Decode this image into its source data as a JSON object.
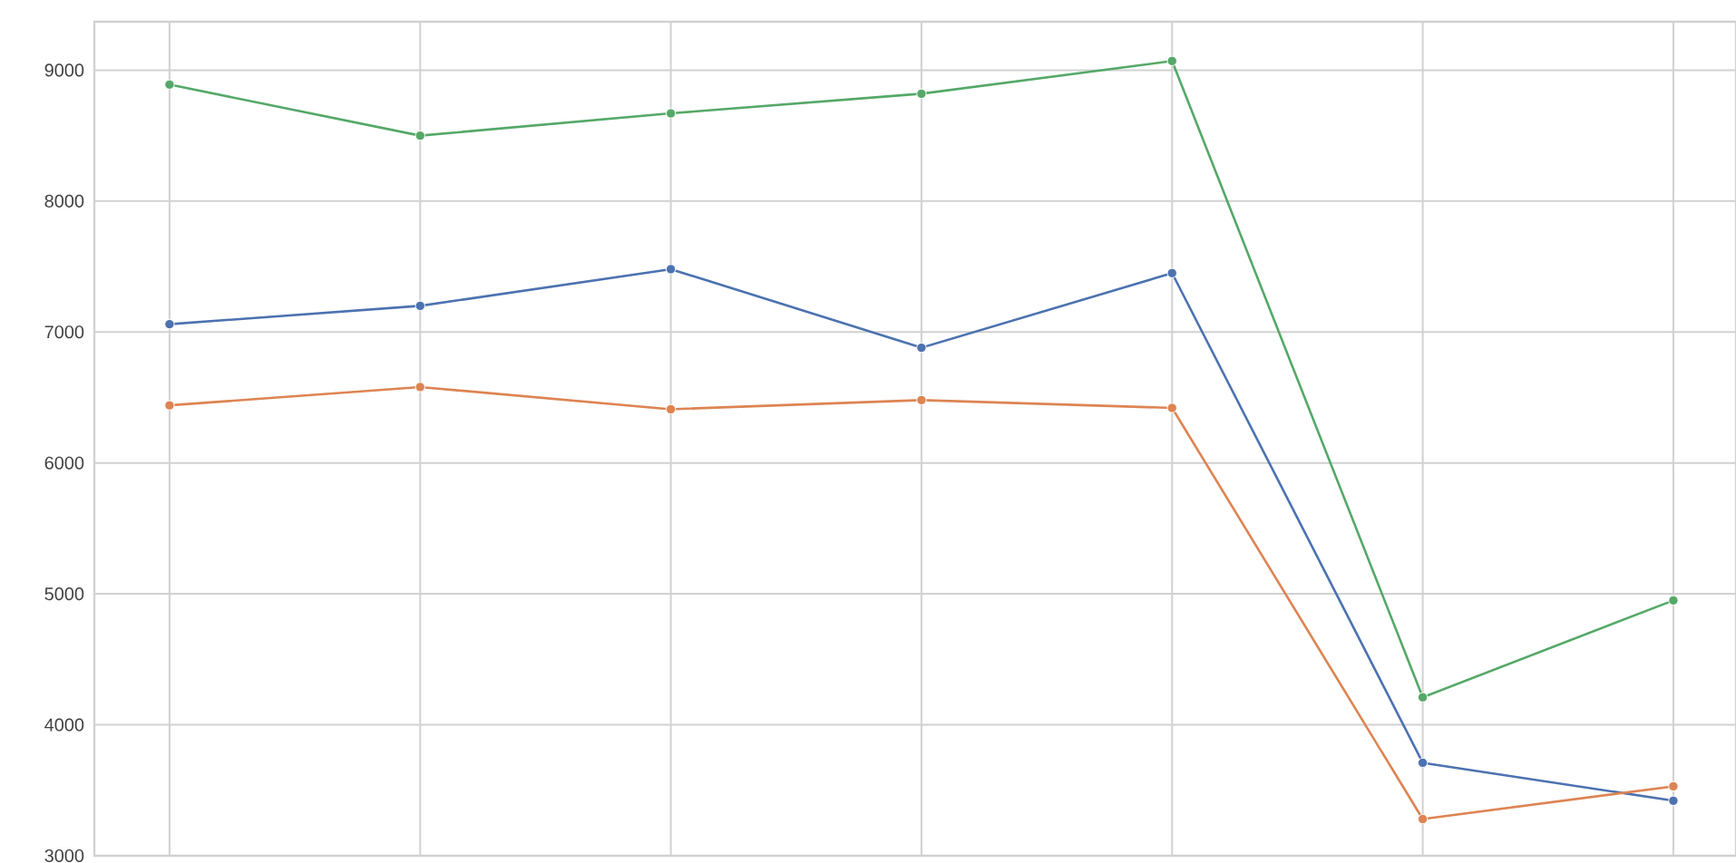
{
  "chart_data": {
    "type": "line",
    "categories": [
      null,
      null,
      null,
      null,
      null,
      null,
      null
    ],
    "series": [
      {
        "color": "#4c72b0",
        "values": [
          7060,
          7200,
          7480,
          6880,
          7450,
          3710,
          3420
        ]
      },
      {
        "color": "#dd8452",
        "values": [
          6440,
          6580,
          6410,
          6480,
          6420,
          3280,
          3530
        ]
      },
      {
        "color": "#55a868",
        "values": [
          8890,
          8500,
          8670,
          8820,
          9070,
          4210,
          4950
        ]
      }
    ],
    "ylim": [
      3000,
      9370
    ],
    "yticks": [
      3000,
      4000,
      5000,
      6000,
      7000,
      8000,
      9000
    ],
    "grid": true,
    "marker": "circle",
    "line_style": "solid",
    "tick_labels": "y"
  }
}
